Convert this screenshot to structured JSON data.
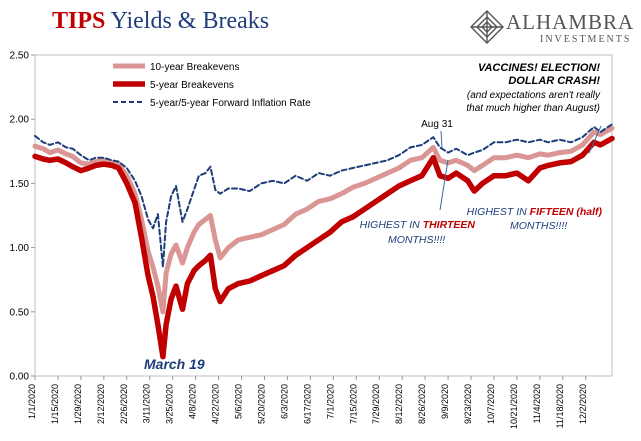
{
  "header": {
    "title_part1": "TIPS",
    "title_part2": " Yields & Breaks",
    "logo_name": "ALHAMBRA",
    "logo_sub": "INVESTMENTS"
  },
  "colors": {
    "ten_year": "#d99694",
    "five_year": "#c00000",
    "forward": "#1f3d7a",
    "annotation": "#1f3d7a",
    "highlight": "#c00000"
  },
  "chart_data": {
    "type": "line",
    "title": "TIPS Yields & Breaks",
    "ylim": [
      0,
      2.5
    ],
    "yticks": [
      "0.00",
      "0.50",
      "1.00",
      "1.50",
      "2.00",
      "2.50"
    ],
    "xlim": [
      "2020-01-01",
      "2020-12-18"
    ],
    "xticks": [
      "1/1/2020",
      "1/15/2020",
      "1/29/2020",
      "2/12/2020",
      "2/26/2020",
      "3/11/2020",
      "3/25/2020",
      "4/8/2020",
      "4/22/2020",
      "5/6/2020",
      "5/20/2020",
      "6/3/2020",
      "6/17/2020",
      "7/1/2020",
      "7/15/2020",
      "7/29/2020",
      "8/12/2020",
      "8/26/2020",
      "9/9/2020",
      "9/23/2020",
      "10/7/2020",
      "10/21/2020",
      "11/4/2020",
      "11/18/2020",
      "12/2/2020"
    ],
    "legend": {
      "placement": "top-left",
      "entries": [
        "10-year Breakevens",
        "5-year Breakevens",
        "5-year/5-year Forward Inflation Rate"
      ]
    },
    "series": [
      {
        "name": "10-year Breakevens",
        "style": "solid-thin",
        "points": [
          [
            "2020-01-01",
            1.79
          ],
          [
            "2020-01-06",
            1.77
          ],
          [
            "2020-01-10",
            1.74
          ],
          [
            "2020-01-15",
            1.76
          ],
          [
            "2020-01-20",
            1.73
          ],
          [
            "2020-01-24",
            1.71
          ],
          [
            "2020-01-29",
            1.66
          ],
          [
            "2020-02-03",
            1.65
          ],
          [
            "2020-02-07",
            1.67
          ],
          [
            "2020-02-12",
            1.68
          ],
          [
            "2020-02-17",
            1.66
          ],
          [
            "2020-02-21",
            1.65
          ],
          [
            "2020-02-26",
            1.56
          ],
          [
            "2020-03-02",
            1.42
          ],
          [
            "2020-03-06",
            1.22
          ],
          [
            "2020-03-10",
            0.97
          ],
          [
            "2020-03-13",
            0.85
          ],
          [
            "2020-03-16",
            0.7
          ],
          [
            "2020-03-19",
            0.5
          ],
          [
            "2020-03-21",
            0.8
          ],
          [
            "2020-03-24",
            0.95
          ],
          [
            "2020-03-27",
            1.02
          ],
          [
            "2020-03-31",
            0.88
          ],
          [
            "2020-04-03",
            1.0
          ],
          [
            "2020-04-07",
            1.12
          ],
          [
            "2020-04-10",
            1.18
          ],
          [
            "2020-04-14",
            1.22
          ],
          [
            "2020-04-17",
            1.25
          ],
          [
            "2020-04-20",
            1.06
          ],
          [
            "2020-04-23",
            0.92
          ],
          [
            "2020-04-28",
            1.0
          ],
          [
            "2020-05-04",
            1.06
          ],
          [
            "2020-05-11",
            1.08
          ],
          [
            "2020-05-18",
            1.1
          ],
          [
            "2020-05-25",
            1.14
          ],
          [
            "2020-06-01",
            1.18
          ],
          [
            "2020-06-08",
            1.26
          ],
          [
            "2020-06-15",
            1.3
          ],
          [
            "2020-06-22",
            1.36
          ],
          [
            "2020-06-29",
            1.38
          ],
          [
            "2020-07-06",
            1.42
          ],
          [
            "2020-07-13",
            1.47
          ],
          [
            "2020-07-20",
            1.5
          ],
          [
            "2020-07-27",
            1.54
          ],
          [
            "2020-08-03",
            1.58
          ],
          [
            "2020-08-10",
            1.62
          ],
          [
            "2020-08-17",
            1.68
          ],
          [
            "2020-08-24",
            1.7
          ],
          [
            "2020-08-31",
            1.78
          ],
          [
            "2020-09-04",
            1.68
          ],
          [
            "2020-09-09",
            1.66
          ],
          [
            "2020-09-14",
            1.68
          ],
          [
            "2020-09-21",
            1.64
          ],
          [
            "2020-09-25",
            1.6
          ],
          [
            "2020-09-30",
            1.64
          ],
          [
            "2020-10-07",
            1.7
          ],
          [
            "2020-10-14",
            1.7
          ],
          [
            "2020-10-21",
            1.72
          ],
          [
            "2020-10-28",
            1.7
          ],
          [
            "2020-11-04",
            1.73
          ],
          [
            "2020-11-09",
            1.72
          ],
          [
            "2020-11-16",
            1.74
          ],
          [
            "2020-11-23",
            1.75
          ],
          [
            "2020-11-30",
            1.8
          ],
          [
            "2020-12-07",
            1.9
          ],
          [
            "2020-12-11",
            1.88
          ],
          [
            "2020-12-18",
            1.93
          ]
        ]
      },
      {
        "name": "5-year Breakevens",
        "style": "solid-thick",
        "points": [
          [
            "2020-01-01",
            1.71
          ],
          [
            "2020-01-06",
            1.69
          ],
          [
            "2020-01-10",
            1.68
          ],
          [
            "2020-01-15",
            1.69
          ],
          [
            "2020-01-20",
            1.66
          ],
          [
            "2020-01-24",
            1.63
          ],
          [
            "2020-01-29",
            1.6
          ],
          [
            "2020-02-03",
            1.62
          ],
          [
            "2020-02-07",
            1.64
          ],
          [
            "2020-02-12",
            1.65
          ],
          [
            "2020-02-17",
            1.64
          ],
          [
            "2020-02-21",
            1.62
          ],
          [
            "2020-02-26",
            1.5
          ],
          [
            "2020-03-02",
            1.35
          ],
          [
            "2020-03-06",
            1.08
          ],
          [
            "2020-03-10",
            0.78
          ],
          [
            "2020-03-13",
            0.62
          ],
          [
            "2020-03-16",
            0.4
          ],
          [
            "2020-03-19",
            0.15
          ],
          [
            "2020-03-21",
            0.4
          ],
          [
            "2020-03-24",
            0.6
          ],
          [
            "2020-03-27",
            0.7
          ],
          [
            "2020-03-31",
            0.52
          ],
          [
            "2020-04-03",
            0.72
          ],
          [
            "2020-04-07",
            0.82
          ],
          [
            "2020-04-10",
            0.86
          ],
          [
            "2020-04-14",
            0.9
          ],
          [
            "2020-04-17",
            0.94
          ],
          [
            "2020-04-20",
            0.68
          ],
          [
            "2020-04-23",
            0.58
          ],
          [
            "2020-04-28",
            0.68
          ],
          [
            "2020-05-04",
            0.72
          ],
          [
            "2020-05-11",
            0.74
          ],
          [
            "2020-05-18",
            0.78
          ],
          [
            "2020-05-25",
            0.82
          ],
          [
            "2020-06-01",
            0.86
          ],
          [
            "2020-06-08",
            0.94
          ],
          [
            "2020-06-15",
            1.0
          ],
          [
            "2020-06-22",
            1.06
          ],
          [
            "2020-06-29",
            1.12
          ],
          [
            "2020-07-06",
            1.2
          ],
          [
            "2020-07-13",
            1.24
          ],
          [
            "2020-07-20",
            1.3
          ],
          [
            "2020-07-27",
            1.36
          ],
          [
            "2020-08-03",
            1.42
          ],
          [
            "2020-08-10",
            1.48
          ],
          [
            "2020-08-17",
            1.52
          ],
          [
            "2020-08-24",
            1.56
          ],
          [
            "2020-08-31",
            1.7
          ],
          [
            "2020-09-04",
            1.56
          ],
          [
            "2020-09-09",
            1.54
          ],
          [
            "2020-09-14",
            1.58
          ],
          [
            "2020-09-21",
            1.52
          ],
          [
            "2020-09-25",
            1.44
          ],
          [
            "2020-09-30",
            1.5
          ],
          [
            "2020-10-07",
            1.56
          ],
          [
            "2020-10-14",
            1.56
          ],
          [
            "2020-10-21",
            1.58
          ],
          [
            "2020-10-28",
            1.52
          ],
          [
            "2020-11-04",
            1.62
          ],
          [
            "2020-11-09",
            1.64
          ],
          [
            "2020-11-16",
            1.66
          ],
          [
            "2020-11-23",
            1.67
          ],
          [
            "2020-11-30",
            1.72
          ],
          [
            "2020-12-07",
            1.82
          ],
          [
            "2020-12-11",
            1.8
          ],
          [
            "2020-12-18",
            1.85
          ]
        ]
      },
      {
        "name": "5-year/5-year Forward Inflation Rate",
        "style": "dashed",
        "points": [
          [
            "2020-01-01",
            1.87
          ],
          [
            "2020-01-06",
            1.82
          ],
          [
            "2020-01-10",
            1.8
          ],
          [
            "2020-01-15",
            1.82
          ],
          [
            "2020-01-20",
            1.78
          ],
          [
            "2020-01-24",
            1.77
          ],
          [
            "2020-01-29",
            1.72
          ],
          [
            "2020-02-03",
            1.68
          ],
          [
            "2020-02-07",
            1.7
          ],
          [
            "2020-02-12",
            1.7
          ],
          [
            "2020-02-17",
            1.68
          ],
          [
            "2020-02-21",
            1.67
          ],
          [
            "2020-02-26",
            1.62
          ],
          [
            "2020-03-02",
            1.52
          ],
          [
            "2020-03-06",
            1.4
          ],
          [
            "2020-03-10",
            1.22
          ],
          [
            "2020-03-13",
            1.15
          ],
          [
            "2020-03-16",
            1.26
          ],
          [
            "2020-03-19",
            0.85
          ],
          [
            "2020-03-21",
            1.2
          ],
          [
            "2020-03-24",
            1.4
          ],
          [
            "2020-03-27",
            1.48
          ],
          [
            "2020-03-31",
            1.2
          ],
          [
            "2020-04-03",
            1.3
          ],
          [
            "2020-04-07",
            1.45
          ],
          [
            "2020-04-10",
            1.56
          ],
          [
            "2020-04-14",
            1.58
          ],
          [
            "2020-04-17",
            1.63
          ],
          [
            "2020-04-20",
            1.45
          ],
          [
            "2020-04-23",
            1.42
          ],
          [
            "2020-04-28",
            1.46
          ],
          [
            "2020-05-04",
            1.46
          ],
          [
            "2020-05-11",
            1.44
          ],
          [
            "2020-05-18",
            1.5
          ],
          [
            "2020-05-25",
            1.52
          ],
          [
            "2020-06-01",
            1.5
          ],
          [
            "2020-06-08",
            1.56
          ],
          [
            "2020-06-15",
            1.52
          ],
          [
            "2020-06-22",
            1.58
          ],
          [
            "2020-06-29",
            1.56
          ],
          [
            "2020-07-06",
            1.6
          ],
          [
            "2020-07-13",
            1.62
          ],
          [
            "2020-07-20",
            1.64
          ],
          [
            "2020-07-27",
            1.66
          ],
          [
            "2020-08-03",
            1.68
          ],
          [
            "2020-08-10",
            1.72
          ],
          [
            "2020-08-17",
            1.78
          ],
          [
            "2020-08-24",
            1.8
          ],
          [
            "2020-08-31",
            1.86
          ],
          [
            "2020-09-04",
            1.78
          ],
          [
            "2020-09-09",
            1.74
          ],
          [
            "2020-09-14",
            1.77
          ],
          [
            "2020-09-21",
            1.72
          ],
          [
            "2020-09-25",
            1.74
          ],
          [
            "2020-09-30",
            1.76
          ],
          [
            "2020-10-07",
            1.82
          ],
          [
            "2020-10-14",
            1.82
          ],
          [
            "2020-10-21",
            1.84
          ],
          [
            "2020-10-28",
            1.82
          ],
          [
            "2020-11-04",
            1.84
          ],
          [
            "2020-11-09",
            1.82
          ],
          [
            "2020-11-16",
            1.84
          ],
          [
            "2020-11-23",
            1.82
          ],
          [
            "2020-11-30",
            1.86
          ],
          [
            "2020-12-07",
            1.94
          ],
          [
            "2020-12-11",
            1.9
          ],
          [
            "2020-12-18",
            1.96
          ]
        ]
      }
    ],
    "annotations": {
      "vaccines_line1": "VACCINES! ELECTION!",
      "vaccines_line2": "DOLLAR CRASH!",
      "vaccines_line3": "(and expectations aren't really",
      "vaccines_line4": "that much higher than August)",
      "aug31": "Aug 31",
      "thirteen_pre": "HIGHEST IN ",
      "thirteen_word": "THIRTEEN",
      "thirteen_post": "MONTHS!!!!",
      "fifteen_pre": "HIGHEST IN ",
      "fifteen_word": "FIFTEEN (half)",
      "fifteen_post": "MONTHS!!!!",
      "march19": "March 19"
    }
  }
}
